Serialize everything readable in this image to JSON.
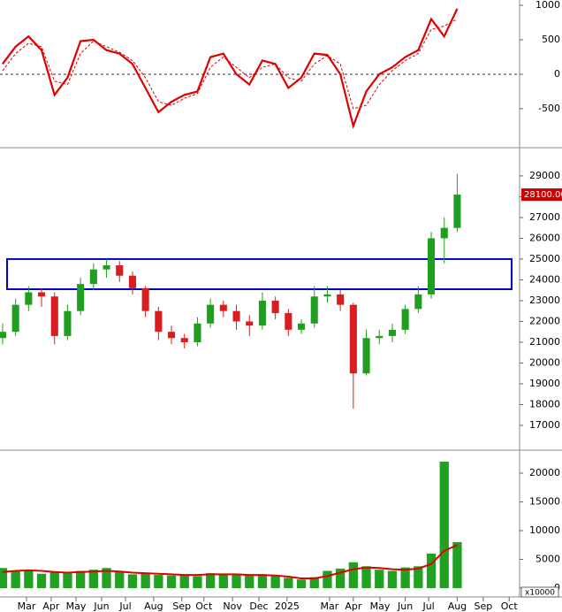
{
  "chart_data": [
    {
      "type": "line",
      "x": [
        0,
        1,
        2,
        3,
        4,
        5,
        6,
        7,
        8,
        9,
        10,
        11,
        12,
        13,
        14,
        15,
        16,
        17,
        18,
        19,
        20,
        21,
        22,
        23,
        24,
        25,
        26,
        27,
        28,
        29,
        30,
        31,
        32,
        33,
        34,
        35
      ],
      "series": [
        {
          "color": "#e00000",
          "style": "solid",
          "values": [
            150,
            400,
            550,
            350,
            -300,
            -50,
            480,
            500,
            350,
            300,
            150,
            -200,
            -550,
            -400,
            -300,
            -250,
            250,
            300,
            0,
            -150,
            200,
            150,
            -200,
            -50,
            300,
            280,
            0,
            -750,
            -250,
            0,
            100,
            250,
            350,
            800,
            550,
            950
          ]
        },
        {
          "color": "#e00000",
          "style": "dashed",
          "values": [
            50,
            300,
            450,
            400,
            -100,
            -150,
            300,
            480,
            400,
            320,
            200,
            -50,
            -400,
            -450,
            -350,
            -280,
            100,
            250,
            100,
            -50,
            100,
            150,
            -50,
            -100,
            150,
            270,
            150,
            -500,
            -450,
            -150,
            50,
            200,
            300,
            650,
            700,
            800
          ]
        }
      ],
      "xlim": [
        -0.2,
        39.8
      ],
      "ylim": [
        -1040,
        1077
      ],
      "yticks": [
        -500,
        0,
        500,
        1000
      ],
      "zero_line": true
    },
    {
      "type": "candlestick",
      "x": [
        0,
        1,
        2,
        3,
        4,
        5,
        6,
        7,
        8,
        9,
        10,
        11,
        12,
        13,
        14,
        15,
        16,
        17,
        18,
        19,
        20,
        21,
        22,
        23,
        24,
        25,
        26,
        27,
        28,
        29,
        30,
        31,
        32,
        33,
        34,
        35
      ],
      "open": [
        21200,
        21500,
        22800,
        23400,
        23200,
        21300,
        22500,
        23800,
        24500,
        24700,
        24200,
        23600,
        22500,
        21500,
        21200,
        21000,
        21900,
        22800,
        22500,
        22000,
        21800,
        23000,
        22400,
        21600,
        21900,
        23200,
        23300,
        22800,
        19500,
        21200,
        21300,
        21600,
        22600,
        23300,
        26000,
        26500
      ],
      "high": [
        21900,
        23100,
        23700,
        23600,
        23400,
        22800,
        24100,
        24800,
        25000,
        24900,
        24400,
        23700,
        22700,
        21800,
        21400,
        22200,
        23100,
        23000,
        22800,
        22300,
        23400,
        23200,
        22600,
        22100,
        23700,
        23700,
        23500,
        22900,
        21600,
        21600,
        21900,
        22800,
        23700,
        26300,
        27000,
        29100
      ],
      "low": [
        20900,
        21300,
        22500,
        22700,
        20900,
        21100,
        22300,
        23500,
        24100,
        23900,
        23300,
        22200,
        21100,
        20900,
        20700,
        20800,
        21700,
        22200,
        21600,
        21300,
        21600,
        22100,
        21300,
        21400,
        21700,
        22900,
        22500,
        17800,
        19400,
        20900,
        21000,
        21400,
        22400,
        23100,
        24800,
        26300
      ],
      "close": [
        21500,
        22800,
        23400,
        23200,
        21300,
        22500,
        23800,
        24500,
        24700,
        24200,
        23600,
        22500,
        21500,
        21200,
        21000,
        21900,
        22800,
        22500,
        22000,
        21800,
        23000,
        22400,
        21600,
        21900,
        23200,
        23300,
        22800,
        19500,
        21200,
        21300,
        21600,
        22600,
        23300,
        26000,
        26500,
        28100
      ],
      "up_color": "#1f9e1f",
      "down_color": "#d81e1e",
      "xlim": [
        -0.2,
        39.8
      ],
      "ylim": [
        15850,
        30230
      ],
      "yticks": [
        17000,
        18000,
        19000,
        20000,
        21000,
        22000,
        23000,
        24000,
        25000,
        26000,
        27000,
        28000,
        29000
      ],
      "zone": {
        "low": 23550,
        "high": 25000,
        "color": "#0000cc"
      },
      "price_tag": {
        "value": 28100,
        "label": "28100.00"
      }
    },
    {
      "type": "bar",
      "x": [
        0,
        1,
        2,
        3,
        4,
        5,
        6,
        7,
        8,
        9,
        10,
        11,
        12,
        13,
        14,
        15,
        16,
        17,
        18,
        19,
        20,
        21,
        22,
        23,
        24,
        25,
        26,
        27,
        28,
        29,
        30,
        31,
        32,
        33,
        34,
        35
      ],
      "values": [
        3500,
        3000,
        3200,
        2500,
        2800,
        2600,
        3000,
        3200,
        3500,
        2800,
        2400,
        2600,
        2300,
        2200,
        2400,
        2100,
        2600,
        2500,
        2300,
        2200,
        2400,
        2100,
        1800,
        1500,
        1900,
        3000,
        3400,
        4500,
        3800,
        3200,
        3000,
        3600,
        3800,
        6000,
        22000,
        8000
      ],
      "color": "#22a022",
      "moving_average": {
        "color": "#e00000",
        "values": [
          2800,
          3000,
          3100,
          3000,
          2800,
          2700,
          2800,
          2900,
          3000,
          2900,
          2700,
          2600,
          2500,
          2400,
          2300,
          2300,
          2400,
          2400,
          2400,
          2300,
          2300,
          2200,
          2000,
          1700,
          1700,
          2100,
          2700,
          3300,
          3600,
          3500,
          3300,
          3200,
          3400,
          4200,
          6500,
          7500
        ]
      },
      "xlim": [
        -0.2,
        39.8
      ],
      "ylim": [
        0,
        23850
      ],
      "yticks": [
        0,
        5000,
        10000,
        15000,
        20000
      ],
      "volume_unit": "x10000",
      "xticks": [
        {
          "value": 1.84,
          "label": "Mar"
        },
        {
          "value": 3.74,
          "label": "Apr"
        },
        {
          "value": 5.65,
          "label": "May"
        },
        {
          "value": 7.62,
          "label": "Jun"
        },
        {
          "value": 9.46,
          "label": "Jul"
        },
        {
          "value": 11.63,
          "label": "Aug"
        },
        {
          "value": 13.8,
          "label": "Sep"
        },
        {
          "value": 15.5,
          "label": "Oct"
        },
        {
          "value": 17.7,
          "label": "Nov"
        },
        {
          "value": 19.73,
          "label": "Dec"
        },
        {
          "value": 21.9,
          "label": "2025"
        },
        {
          "value": 25.17,
          "label": "Mar"
        },
        {
          "value": 27.0,
          "label": "Apr"
        },
        {
          "value": 29.05,
          "label": "May"
        },
        {
          "value": 31.0,
          "label": "Jun"
        },
        {
          "value": 32.8,
          "label": "Jul"
        },
        {
          "value": 35.0,
          "label": "Aug"
        },
        {
          "value": 37.0,
          "label": "Sep"
        },
        {
          "value": 39.0,
          "label": "Oct"
        }
      ]
    }
  ]
}
